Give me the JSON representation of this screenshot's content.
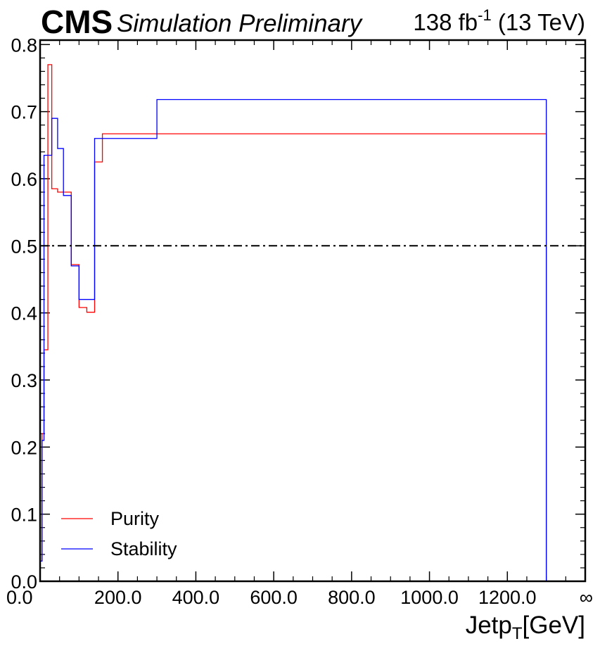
{
  "header": {
    "experiment": "CMS",
    "status": "Simulation Preliminary",
    "lumi": "138 fb",
    "lumi_exponent": "-1",
    "energy": " (13 TeV)"
  },
  "chart_data": {
    "type": "line",
    "title": "",
    "xlabel": "Jetp",
    "xlabel_subscript": "T",
    "xlabel_unit": "[GeV]",
    "ylabel": "",
    "xlim": [
      0,
      1400
    ],
    "ylim": [
      0,
      0.8
    ],
    "x_tick_labels": [
      "0.0",
      "200.0",
      "400.0",
      "600.0",
      "800.0",
      "1000.0",
      "1200.0",
      "∞"
    ],
    "y_tick_labels": [
      "0.0",
      "0.1",
      "0.2",
      "0.3",
      "0.4",
      "0.5",
      "0.6",
      "0.7",
      "0.8"
    ],
    "bin_edges": [
      0,
      5,
      10,
      20,
      30,
      45,
      60,
      80,
      100,
      120,
      140,
      160,
      300,
      1300
    ],
    "series": [
      {
        "name": "Purity",
        "color": "#ff0000",
        "values": [
          0.03,
          0.22,
          0.345,
          0.77,
          0.585,
          0.58,
          0.58,
          0.472,
          0.408,
          0.401,
          0.625,
          0.667,
          0.667
        ]
      },
      {
        "name": "Stability",
        "color": "#0000ff",
        "values": [
          0.03,
          0.21,
          0.635,
          0.635,
          0.69,
          0.645,
          0.575,
          0.47,
          0.42,
          0.42,
          0.66,
          0.66,
          0.718
        ]
      }
    ],
    "reference_line": {
      "y": 0.5,
      "style": "dash-dot",
      "color": "#000000"
    },
    "legend": {
      "position": "bottom-left",
      "entries": [
        "Purity",
        "Stability"
      ]
    },
    "grid": false
  }
}
